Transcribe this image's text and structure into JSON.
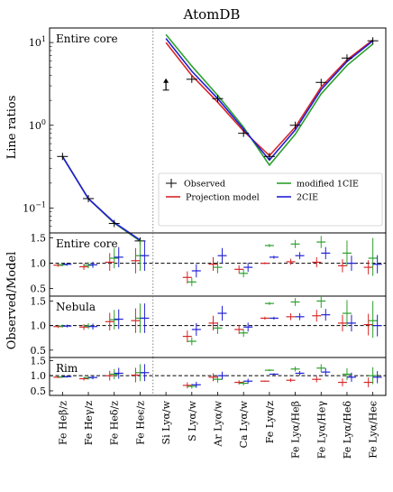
{
  "figure_title": "AtomDB",
  "chart_data": [
    {
      "type": "line",
      "title": "Entire core",
      "ylabel": "Line ratios",
      "yscale": "log",
      "ylim": [
        0.05,
        15
      ],
      "yticks": [
        {
          "v": 0.1,
          "label": "10",
          "exp": "−1"
        },
        {
          "v": 1,
          "label": "10",
          "exp": "0"
        },
        {
          "v": 10,
          "label": "10",
          "exp": "1"
        }
      ],
      "categories": [
        "Fe Heβ/z",
        "Fe Heγ/z",
        "Fe Heδ/z",
        "Fe Heϵ/z",
        "Si Lyα/w",
        "S Lyα/w",
        "Ar Lyα/w",
        "Ca Lyα/w",
        "Fe Lyα/z",
        "Fe Lyα/Heβ",
        "Fe Lyα/Heγ",
        "Fe Lyα/Heδ",
        "Fe Lyα/Heϵ"
      ],
      "observed": [
        {
          "x": 0,
          "y": 0.42
        },
        {
          "x": 1,
          "y": 0.13
        },
        {
          "x": 2,
          "y": 0.065
        },
        {
          "x": 3,
          "y": 0.04
        },
        {
          "x": 4,
          "y": 2.8,
          "upper_limit": true
        },
        {
          "x": 5,
          "y": 3.6
        },
        {
          "x": 6,
          "y": 2.1
        },
        {
          "x": 7,
          "y": 0.8
        },
        {
          "x": 8,
          "y": 0.42
        },
        {
          "x": 9,
          "y": 1.0
        },
        {
          "x": 10,
          "y": 3.3
        },
        {
          "x": 11,
          "y": 6.5
        },
        {
          "x": 12,
          "y": 10.5
        }
      ],
      "series": [
        {
          "name": "Projection model",
          "color": "#d62728",
          "segments": [
            {
              "x": [
                0,
                1,
                2,
                3
              ],
              "y": [
                0.42,
                0.13,
                0.066,
                0.04
              ]
            },
            {
              "x": [
                4,
                5,
                6,
                7,
                8,
                9,
                10,
                11,
                12
              ],
              "y": [
                10.0,
                4.0,
                1.9,
                0.85,
                0.43,
                0.95,
                2.9,
                6.2,
                10.8
              ]
            }
          ]
        },
        {
          "name": "modified 1CIE",
          "color": "#2ca02c",
          "segments": [
            {
              "x": [
                0,
                1,
                2,
                3
              ],
              "y": [
                0.42,
                0.13,
                0.066,
                0.04
              ]
            },
            {
              "x": [
                4,
                5,
                6,
                7,
                8,
                9,
                10,
                11,
                12
              ],
              "y": [
                12.5,
                5.2,
                2.3,
                0.95,
                0.33,
                0.78,
                2.4,
                5.3,
                9.6
              ]
            }
          ]
        },
        {
          "name": "2CIE",
          "color": "#1f1fd6",
          "segments": [
            {
              "x": [
                0,
                1,
                2,
                3
              ],
              "y": [
                0.42,
                0.13,
                0.067,
                0.041
              ]
            },
            {
              "x": [
                4,
                5,
                6,
                7,
                8,
                9,
                10,
                11,
                12
              ],
              "y": [
                11.2,
                4.5,
                2.1,
                0.9,
                0.38,
                0.88,
                2.7,
                5.9,
                10.5
              ]
            }
          ]
        }
      ],
      "legend": {
        "position": "bottom-right",
        "observed_label": "Observed"
      }
    },
    {
      "type": "scatter",
      "title": "Entire core",
      "ylim": [
        0.35,
        1.6
      ],
      "yticks": [
        0.5,
        1.0,
        1.5
      ],
      "reference_line": 1.0,
      "series": [
        {
          "name": "Projection model",
          "color": "#d62728",
          "points": [
            {
              "x": 0,
              "y": 0.96,
              "lo": 0.93,
              "hi": 0.99
            },
            {
              "x": 1,
              "y": 0.93,
              "lo": 0.87,
              "hi": 0.99
            },
            {
              "x": 2,
              "y": 1.02,
              "lo": 0.85,
              "hi": 1.2
            },
            {
              "x": 3,
              "y": 1.05,
              "lo": 0.8,
              "hi": 1.3
            },
            {
              "x": 5,
              "y": 0.72,
              "lo": 0.6,
              "hi": 0.84
            },
            {
              "x": 6,
              "y": 0.98,
              "lo": 0.85,
              "hi": 1.12
            },
            {
              "x": 7,
              "y": 0.88,
              "lo": 0.8,
              "hi": 0.96
            },
            {
              "x": 8,
              "y": 1.0,
              "lo": 0.98,
              "hi": 1.02
            },
            {
              "x": 9,
              "y": 1.03,
              "lo": 0.97,
              "hi": 1.09
            },
            {
              "x": 10,
              "y": 1.02,
              "lo": 0.92,
              "hi": 1.12
            },
            {
              "x": 11,
              "y": 0.95,
              "lo": 0.82,
              "hi": 1.08
            },
            {
              "x": 12,
              "y": 0.92,
              "lo": 0.78,
              "hi": 1.06
            }
          ]
        },
        {
          "name": "modified 1CIE",
          "color": "#2ca02c",
          "points": [
            {
              "x": 0,
              "y": 0.97,
              "lo": 0.94,
              "hi": 1.0
            },
            {
              "x": 1,
              "y": 0.96,
              "lo": 0.9,
              "hi": 1.02
            },
            {
              "x": 2,
              "y": 1.1,
              "lo": 0.9,
              "hi": 1.3
            },
            {
              "x": 3,
              "y": 1.15,
              "lo": 0.85,
              "hi": 1.45
            },
            {
              "x": 5,
              "y": 0.63,
              "lo": 0.55,
              "hi": 0.71
            },
            {
              "x": 6,
              "y": 0.92,
              "lo": 0.8,
              "hi": 1.04
            },
            {
              "x": 7,
              "y": 0.8,
              "lo": 0.72,
              "hi": 0.88
            },
            {
              "x": 8,
              "y": 1.35,
              "lo": 1.32,
              "hi": 1.38
            },
            {
              "x": 9,
              "y": 1.38,
              "lo": 1.3,
              "hi": 1.46
            },
            {
              "x": 10,
              "y": 1.42,
              "lo": 1.3,
              "hi": 1.54
            },
            {
              "x": 11,
              "y": 1.2,
              "lo": 0.95,
              "hi": 1.45
            },
            {
              "x": 12,
              "y": 1.1,
              "lo": 0.75,
              "hi": 1.5
            }
          ]
        },
        {
          "name": "2CIE",
          "color": "#1f1fd6",
          "points": [
            {
              "x": 0,
              "y": 0.98,
              "lo": 0.95,
              "hi": 1.01
            },
            {
              "x": 1,
              "y": 0.97,
              "lo": 0.91,
              "hi": 1.03
            },
            {
              "x": 2,
              "y": 1.12,
              "lo": 0.92,
              "hi": 1.32
            },
            {
              "x": 3,
              "y": 1.15,
              "lo": 0.85,
              "hi": 1.45
            },
            {
              "x": 5,
              "y": 0.85,
              "lo": 0.72,
              "hi": 0.98
            },
            {
              "x": 6,
              "y": 1.15,
              "lo": 1.0,
              "hi": 1.3
            },
            {
              "x": 7,
              "y": 0.92,
              "lo": 0.83,
              "hi": 1.01
            },
            {
              "x": 8,
              "y": 1.12,
              "lo": 1.09,
              "hi": 1.15
            },
            {
              "x": 9,
              "y": 1.15,
              "lo": 1.08,
              "hi": 1.22
            },
            {
              "x": 10,
              "y": 1.2,
              "lo": 1.08,
              "hi": 1.32
            },
            {
              "x": 11,
              "y": 1.0,
              "lo": 0.85,
              "hi": 1.15
            },
            {
              "x": 12,
              "y": 0.98,
              "lo": 0.8,
              "hi": 1.16
            }
          ]
        }
      ]
    },
    {
      "type": "scatter",
      "title": "Nebula",
      "ylim": [
        0.35,
        1.6
      ],
      "yticks": [
        0.5,
        1.0,
        1.5
      ],
      "reference_line": 1.0,
      "series": [
        {
          "name": "Projection model",
          "color": "#d62728",
          "points": [
            {
              "x": 0,
              "y": 0.98,
              "lo": 0.95,
              "hi": 1.01
            },
            {
              "x": 1,
              "y": 0.97,
              "lo": 0.91,
              "hi": 1.03
            },
            {
              "x": 2,
              "y": 1.08,
              "lo": 0.9,
              "hi": 1.26
            },
            {
              "x": 3,
              "y": 1.1,
              "lo": 0.85,
              "hi": 1.35
            },
            {
              "x": 5,
              "y": 0.78,
              "lo": 0.66,
              "hi": 0.9
            },
            {
              "x": 6,
              "y": 1.05,
              "lo": 0.9,
              "hi": 1.2
            },
            {
              "x": 7,
              "y": 0.92,
              "lo": 0.83,
              "hi": 1.01
            },
            {
              "x": 8,
              "y": 1.15,
              "lo": 1.12,
              "hi": 1.18
            },
            {
              "x": 9,
              "y": 1.18,
              "lo": 1.11,
              "hi": 1.25
            },
            {
              "x": 10,
              "y": 1.2,
              "lo": 1.08,
              "hi": 1.32
            },
            {
              "x": 11,
              "y": 1.05,
              "lo": 0.88,
              "hi": 1.22
            },
            {
              "x": 12,
              "y": 1.02,
              "lo": 0.8,
              "hi": 1.24
            }
          ]
        },
        {
          "name": "modified 1CIE",
          "color": "#2ca02c",
          "points": [
            {
              "x": 0,
              "y": 0.99,
              "lo": 0.96,
              "hi": 1.02
            },
            {
              "x": 1,
              "y": 0.99,
              "lo": 0.93,
              "hi": 1.05
            },
            {
              "x": 2,
              "y": 1.12,
              "lo": 0.92,
              "hi": 1.32
            },
            {
              "x": 3,
              "y": 1.15,
              "lo": 0.85,
              "hi": 1.45
            },
            {
              "x": 5,
              "y": 0.68,
              "lo": 0.6,
              "hi": 0.76
            },
            {
              "x": 6,
              "y": 0.95,
              "lo": 0.83,
              "hi": 1.07
            },
            {
              "x": 7,
              "y": 0.85,
              "lo": 0.77,
              "hi": 0.93
            },
            {
              "x": 8,
              "y": 1.45,
              "lo": 1.42,
              "hi": 1.48
            },
            {
              "x": 9,
              "y": 1.48,
              "lo": 1.4,
              "hi": 1.56
            },
            {
              "x": 10,
              "y": 1.5,
              "lo": 1.36,
              "hi": 1.6
            },
            {
              "x": 11,
              "y": 1.25,
              "lo": 0.98,
              "hi": 1.52
            },
            {
              "x": 12,
              "y": 1.1,
              "lo": 0.75,
              "hi": 1.5
            }
          ]
        },
        {
          "name": "2CIE",
          "color": "#1f1fd6",
          "points": [
            {
              "x": 0,
              "y": 0.99,
              "lo": 0.96,
              "hi": 1.02
            },
            {
              "x": 1,
              "y": 0.98,
              "lo": 0.92,
              "hi": 1.04
            },
            {
              "x": 2,
              "y": 1.13,
              "lo": 0.93,
              "hi": 1.33
            },
            {
              "x": 3,
              "y": 1.15,
              "lo": 0.85,
              "hi": 1.45
            },
            {
              "x": 5,
              "y": 0.92,
              "lo": 0.79,
              "hi": 1.05
            },
            {
              "x": 6,
              "y": 1.25,
              "lo": 1.1,
              "hi": 1.4
            },
            {
              "x": 7,
              "y": 0.97,
              "lo": 0.88,
              "hi": 1.06
            },
            {
              "x": 8,
              "y": 1.15,
              "lo": 1.12,
              "hi": 1.18
            },
            {
              "x": 9,
              "y": 1.18,
              "lo": 1.11,
              "hi": 1.25
            },
            {
              "x": 10,
              "y": 1.22,
              "lo": 1.1,
              "hi": 1.34
            },
            {
              "x": 11,
              "y": 1.05,
              "lo": 0.88,
              "hi": 1.22
            },
            {
              "x": 12,
              "y": 1.0,
              "lo": 0.78,
              "hi": 1.22
            }
          ]
        }
      ]
    },
    {
      "type": "scatter",
      "title": "Rim",
      "ylim": [
        0.35,
        1.6
      ],
      "yticks": [
        0.5,
        1.0,
        1.5
      ],
      "reference_line": 1.0,
      "series": [
        {
          "name": "Projection model",
          "color": "#d62728",
          "points": [
            {
              "x": 0,
              "y": 0.95,
              "lo": 0.92,
              "hi": 0.98
            },
            {
              "x": 1,
              "y": 0.9,
              "lo": 0.84,
              "hi": 0.96
            },
            {
              "x": 2,
              "y": 1.0,
              "lo": 0.84,
              "hi": 1.16
            },
            {
              "x": 3,
              "y": 1.02,
              "lo": 0.78,
              "hi": 1.26
            },
            {
              "x": 5,
              "y": 0.68,
              "lo": 0.58,
              "hi": 0.78
            },
            {
              "x": 6,
              "y": 0.95,
              "lo": 0.82,
              "hi": 1.08
            },
            {
              "x": 7,
              "y": 0.78,
              "lo": 0.71,
              "hi": 0.85
            },
            {
              "x": 8,
              "y": 0.82,
              "lo": 0.8,
              "hi": 0.84
            },
            {
              "x": 9,
              "y": 0.85,
              "lo": 0.79,
              "hi": 0.91
            },
            {
              "x": 10,
              "y": 0.88,
              "lo": 0.78,
              "hi": 0.98
            },
            {
              "x": 11,
              "y": 0.78,
              "lo": 0.65,
              "hi": 0.91
            },
            {
              "x": 12,
              "y": 0.78,
              "lo": 0.62,
              "hi": 0.94
            }
          ]
        },
        {
          "name": "modified 1CIE",
          "color": "#2ca02c",
          "points": [
            {
              "x": 0,
              "y": 0.96,
              "lo": 0.93,
              "hi": 0.99
            },
            {
              "x": 1,
              "y": 0.93,
              "lo": 0.87,
              "hi": 0.99
            },
            {
              "x": 2,
              "y": 1.05,
              "lo": 0.88,
              "hi": 1.22
            },
            {
              "x": 3,
              "y": 1.1,
              "lo": 0.82,
              "hi": 1.38
            },
            {
              "x": 5,
              "y": 0.65,
              "lo": 0.57,
              "hi": 0.73
            },
            {
              "x": 6,
              "y": 0.88,
              "lo": 0.77,
              "hi": 0.99
            },
            {
              "x": 7,
              "y": 0.75,
              "lo": 0.68,
              "hi": 0.82
            },
            {
              "x": 8,
              "y": 1.18,
              "lo": 1.15,
              "hi": 1.21
            },
            {
              "x": 9,
              "y": 1.22,
              "lo": 1.14,
              "hi": 1.3
            },
            {
              "x": 10,
              "y": 1.25,
              "lo": 1.12,
              "hi": 1.38
            },
            {
              "x": 11,
              "y": 1.05,
              "lo": 0.85,
              "hi": 1.25
            },
            {
              "x": 12,
              "y": 1.0,
              "lo": 0.72,
              "hi": 1.28
            }
          ]
        },
        {
          "name": "2CIE",
          "color": "#1f1fd6",
          "points": [
            {
              "x": 0,
              "y": 0.97,
              "lo": 0.94,
              "hi": 1.0
            },
            {
              "x": 1,
              "y": 0.94,
              "lo": 0.88,
              "hi": 1.0
            },
            {
              "x": 2,
              "y": 1.08,
              "lo": 0.9,
              "hi": 1.26
            },
            {
              "x": 3,
              "y": 1.1,
              "lo": 0.82,
              "hi": 1.38
            },
            {
              "x": 5,
              "y": 0.7,
              "lo": 0.6,
              "hi": 0.8
            },
            {
              "x": 6,
              "y": 1.0,
              "lo": 0.87,
              "hi": 1.13
            },
            {
              "x": 7,
              "y": 0.82,
              "lo": 0.74,
              "hi": 0.9
            },
            {
              "x": 8,
              "y": 1.05,
              "lo": 1.02,
              "hi": 1.08
            },
            {
              "x": 9,
              "y": 1.08,
              "lo": 1.01,
              "hi": 1.15
            },
            {
              "x": 10,
              "y": 1.12,
              "lo": 1.0,
              "hi": 1.24
            },
            {
              "x": 11,
              "y": 0.95,
              "lo": 0.8,
              "hi": 1.1
            },
            {
              "x": 12,
              "y": 0.95,
              "lo": 0.75,
              "hi": 1.15
            }
          ]
        }
      ]
    }
  ],
  "shared_ylabel": "Observed/Model"
}
